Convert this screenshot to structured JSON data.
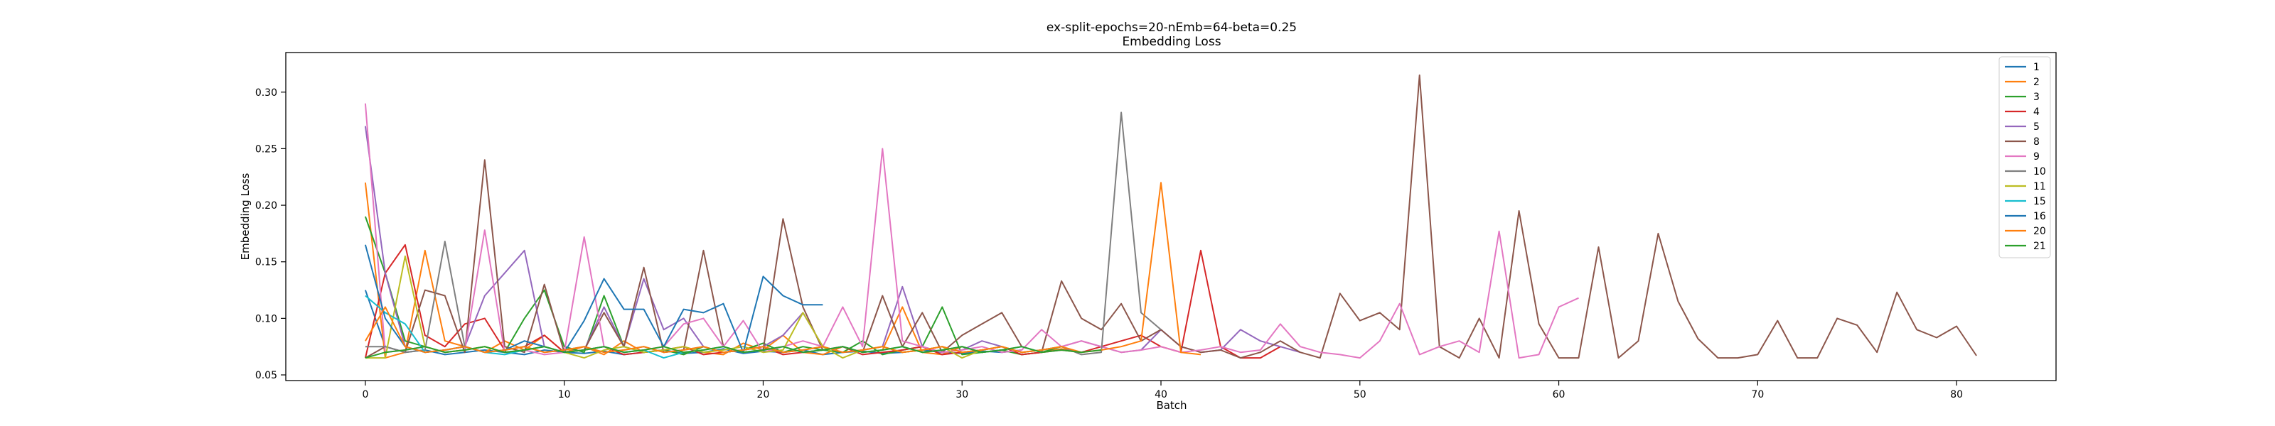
{
  "chart_data": {
    "type": "line",
    "title": "ex-split-epochs=20-nEmb=64-beta=0.25",
    "subtitle": "Embedding Loss",
    "xlabel": "Batch",
    "ylabel": "Embedding Loss",
    "xlim": [
      -4,
      85
    ],
    "ylim": [
      0.045,
      0.335
    ],
    "xticks": [
      0,
      10,
      20,
      30,
      40,
      50,
      60,
      70,
      80
    ],
    "yticks": [
      0.05,
      0.1,
      0.15,
      0.2,
      0.25,
      0.3
    ],
    "ytick_labels": [
      "0.05",
      "0.10",
      "0.15",
      "0.20",
      "0.25",
      "0.30"
    ],
    "grid": false,
    "legend_position": "top-right",
    "series": [
      {
        "name": "1",
        "color": "#1f77b4",
        "values": [
          0.125,
          0.075,
          0.07,
          0.072,
          0.068,
          0.07,
          0.072,
          0.07,
          0.068,
          0.072,
          0.07,
          0.069,
          0.071,
          0.068,
          0.07,
          0.072,
          0.069,
          0.07,
          0.073,
          0.069,
          0.071,
          0.07,
          0.072,
          0.068,
          0.07,
          0.071,
          0.069,
          0.07,
          0.072,
          0.07,
          0.069,
          0.071,
          0.07,
          0.072
        ]
      },
      {
        "name": "2",
        "color": "#ff7f0e",
        "values": [
          0.22,
          0.065,
          0.07,
          0.16,
          0.08,
          0.075,
          0.07,
          0.08,
          0.072,
          0.085,
          0.07,
          0.075,
          0.068,
          0.08,
          0.07,
          0.072,
          0.075,
          0.07,
          0.068,
          0.078,
          0.072,
          0.085,
          0.07,
          0.068,
          0.075,
          0.07,
          0.072,
          0.11,
          0.07,
          0.068,
          0.075,
          0.07,
          0.072,
          0.068,
          0.07,
          0.073,
          0.07
        ]
      },
      {
        "name": "3",
        "color": "#2ca02c",
        "values": [
          0.19,
          0.14,
          0.08,
          0.075,
          0.07,
          0.072,
          0.075,
          0.07,
          0.1,
          0.125,
          0.075,
          0.07,
          0.12,
          0.075,
          0.07,
          0.072,
          0.068,
          0.075,
          0.07,
          0.072,
          0.078,
          0.07,
          0.075,
          0.072,
          0.07,
          0.08,
          0.068,
          0.072,
          0.075,
          0.11,
          0.068,
          0.07,
          0.072,
          0.068,
          0.07,
          0.075
        ]
      },
      {
        "name": "4",
        "color": "#d62728",
        "values": [
          0.065,
          0.14,
          0.165,
          0.085,
          0.075,
          0.095,
          0.1,
          0.072,
          0.075,
          0.085,
          0.07,
          0.072,
          0.075,
          0.068,
          0.07,
          0.072,
          0.075,
          0.068,
          0.07,
          0.072,
          0.075,
          0.068,
          0.07,
          0.072,
          0.075,
          0.068,
          0.07,
          0.072,
          0.075,
          0.068,
          0.07,
          0.072,
          0.075,
          0.068,
          0.07,
          0.072,
          0.07,
          0.075,
          0.08,
          0.085,
          0.075,
          0.07,
          0.16,
          0.075,
          0.065,
          0.065,
          0.075
        ]
      },
      {
        "name": "5",
        "color": "#9467bd",
        "values": [
          0.27,
          0.14,
          0.075,
          0.07,
          0.072,
          0.075,
          0.12,
          0.14,
          0.16,
          0.075,
          0.07,
          0.072,
          0.11,
          0.075,
          0.135,
          0.09,
          0.1,
          0.075,
          0.07,
          0.072,
          0.075,
          0.085,
          0.105,
          0.075,
          0.07,
          0.072,
          0.075,
          0.128,
          0.075,
          0.07,
          0.072,
          0.08,
          0.075,
          0.07,
          0.072,
          0.075,
          0.08,
          0.075,
          0.07,
          0.072,
          0.09,
          0.075,
          0.07,
          0.072,
          0.09,
          0.08,
          0.075,
          0.07
        ]
      },
      {
        "name": "8",
        "color": "#8c564b",
        "values": [
          0.065,
          0.075,
          0.07,
          0.125,
          0.12,
          0.07,
          0.24,
          0.075,
          0.07,
          0.13,
          0.07,
          0.072,
          0.105,
          0.075,
          0.145,
          0.07,
          0.072,
          0.16,
          0.075,
          0.07,
          0.072,
          0.188,
          0.11,
          0.072,
          0.075,
          0.07,
          0.12,
          0.075,
          0.105,
          0.07,
          0.085,
          0.095,
          0.105,
          0.075,
          0.07,
          0.133,
          0.1,
          0.09,
          0.113,
          0.08,
          0.09,
          0.075,
          0.07,
          0.072,
          0.065,
          0.07,
          0.08,
          0.07,
          0.065,
          0.122,
          0.098,
          0.105,
          0.09,
          0.315,
          0.075,
          0.065,
          0.1,
          0.065,
          0.195,
          0.095,
          0.065,
          0.065,
          0.163,
          0.065,
          0.08,
          0.175,
          0.115,
          0.082,
          0.065,
          0.065,
          0.068,
          0.098,
          0.065,
          0.065,
          0.1,
          0.094,
          0.07,
          0.123,
          0.09,
          0.083,
          0.093,
          0.067
        ]
      },
      {
        "name": "9",
        "color": "#e377c2",
        "values": [
          0.29,
          0.07,
          0.072,
          0.075,
          0.07,
          0.072,
          0.178,
          0.07,
          0.072,
          0.068,
          0.07,
          0.172,
          0.075,
          0.07,
          0.072,
          0.075,
          0.095,
          0.1,
          0.075,
          0.098,
          0.07,
          0.075,
          0.08,
          0.075,
          0.11,
          0.075,
          0.25,
          0.08,
          0.075,
          0.07,
          0.072,
          0.075,
          0.07,
          0.072,
          0.09,
          0.075,
          0.08,
          0.075,
          0.07,
          0.072,
          0.075,
          0.07,
          0.072,
          0.075,
          0.07,
          0.072,
          0.095,
          0.075,
          0.07,
          0.068,
          0.065,
          0.08,
          0.113,
          0.068,
          0.075,
          0.08,
          0.07,
          0.177,
          0.065,
          0.068,
          0.11,
          0.118
        ]
      },
      {
        "name": "10",
        "color": "#7f7f7f",
        "values": [
          0.075,
          0.075,
          0.07,
          0.072,
          0.168,
          0.075,
          0.07,
          0.072,
          0.075,
          0.07,
          0.072,
          0.075,
          0.07,
          0.072,
          0.075,
          0.07,
          0.072,
          0.075,
          0.07,
          0.072,
          0.075,
          0.07,
          0.072,
          0.075,
          0.07,
          0.072,
          0.075,
          0.07,
          0.072,
          0.075,
          0.07,
          0.072,
          0.075,
          0.07,
          0.072,
          0.075,
          0.068,
          0.07,
          0.282,
          0.105,
          0.09
        ]
      },
      {
        "name": "11",
        "color": "#bcbd22",
        "values": [
          0.065,
          0.065,
          0.155,
          0.075,
          0.07,
          0.072,
          0.075,
          0.07,
          0.072,
          0.075,
          0.07,
          0.065,
          0.072,
          0.075,
          0.07,
          0.072,
          0.075,
          0.07,
          0.072,
          0.075,
          0.07,
          0.072,
          0.105,
          0.075,
          0.065,
          0.072,
          0.075,
          0.07,
          0.072,
          0.075,
          0.065,
          0.072,
          0.075,
          0.07,
          0.072,
          0.075
        ]
      },
      {
        "name": "15",
        "color": "#17becf",
        "values": [
          0.12,
          0.105,
          0.095,
          0.07,
          0.072,
          0.075,
          0.07,
          0.068,
          0.072,
          0.075,
          0.07,
          0.072,
          0.075,
          0.07,
          0.072,
          0.065,
          0.07,
          0.072,
          0.075,
          0.07,
          0.072,
          0.075,
          0.07,
          0.072,
          0.075,
          0.07,
          0.072,
          0.075,
          0.07,
          0.072,
          0.075,
          0.07,
          0.072,
          0.075,
          0.07
        ]
      },
      {
        "name": "16",
        "color": "#1f77b4",
        "values": [
          0.165,
          0.1,
          0.075,
          0.07,
          0.072,
          0.075,
          0.07,
          0.072,
          0.08,
          0.075,
          0.07,
          0.098,
          0.135,
          0.108,
          0.108,
          0.075,
          0.108,
          0.105,
          0.113,
          0.07,
          0.137,
          0.12,
          0.112,
          0.112
        ]
      },
      {
        "name": "20",
        "color": "#ff7f0e",
        "values": [
          0.08,
          0.11,
          0.075,
          0.07,
          0.072,
          0.075,
          0.07,
          0.072,
          0.075,
          0.07,
          0.072,
          0.075,
          0.07,
          0.072,
          0.075,
          0.07,
          0.072,
          0.075,
          0.07,
          0.072,
          0.075,
          0.07,
          0.072,
          0.075,
          0.07,
          0.072,
          0.075,
          0.07,
          0.072,
          0.075,
          0.07,
          0.072,
          0.075,
          0.07,
          0.072,
          0.075,
          0.07,
          0.072,
          0.075,
          0.08,
          0.22,
          0.07,
          0.068
        ]
      },
      {
        "name": "21",
        "color": "#2ca02c",
        "values": [
          0.065,
          0.07,
          0.072,
          0.075,
          0.07,
          0.072,
          0.075,
          0.07,
          0.072,
          0.075,
          0.07,
          0.072,
          0.075,
          0.07,
          0.072,
          0.075,
          0.07,
          0.072,
          0.075,
          0.07,
          0.072,
          0.075,
          0.07,
          0.072,
          0.075,
          0.07,
          0.072,
          0.075,
          0.07,
          0.072,
          0.075,
          0.07,
          0.072,
          0.075,
          0.07,
          0.072,
          0.07,
          0.072
        ]
      }
    ]
  }
}
